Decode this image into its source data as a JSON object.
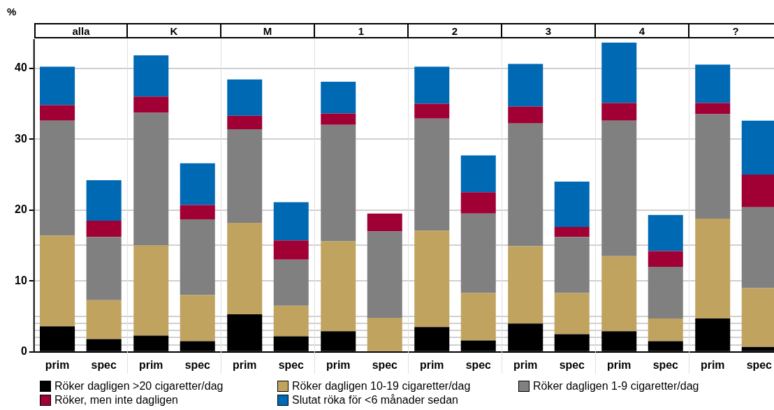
{
  "chart_data": [
    {
      "type": "bar",
      "title": "alla",
      "ylabel": "%",
      "legend": "bottom",
      "stacked": true,
      "grid": "y",
      "categories": [
        "prim",
        "spec"
      ],
      "ylim": [
        0,
        44
      ],
      "yticks": [
        0,
        {
          "value": 1,
          "label": null
        },
        {
          "value": 2,
          "label": null
        },
        {
          "value": 3,
          "label": null
        },
        {
          "value": 4,
          "label": null
        },
        {
          "value": 5,
          "label": null
        },
        10,
        {
          "value": 15,
          "label": null
        },
        20,
        30,
        40
      ],
      "series": [
        {
          "name": "Röker dagligen >20 cigaretter/dag",
          "color": "#000000",
          "values": [
            3.6,
            1.8
          ]
        },
        {
          "name": "Röker dagligen 10-19 cigaretter/dag",
          "color": "#bfa35f",
          "values": [
            12.8,
            5.5
          ]
        },
        {
          "name": "Röker dagligen 1-9 cigaretter/dag",
          "color": "#808080",
          "values": [
            16.2,
            8.9
          ]
        },
        {
          "name": "Röker, men inte dagligen",
          "color": "#a00034",
          "values": [
            2.2,
            2.3
          ]
        },
        {
          "name": "Slutat röka för <6 månader sedan",
          "color": "#0069b4",
          "values": [
            5.4,
            5.7
          ]
        }
      ]
    },
    {
      "type": "bar",
      "title": "K",
      "stacked": true,
      "grid": "y",
      "tick_labels": "x",
      "categories": [
        "prim",
        "spec"
      ],
      "ylim": [
        0,
        44
      ],
      "yticks": [
        0,
        {
          "value": 1,
          "label": null
        },
        {
          "value": 2,
          "label": null
        },
        {
          "value": 3,
          "label": null
        },
        {
          "value": 4,
          "label": null
        },
        {
          "value": 5,
          "label": null
        },
        10,
        {
          "value": 15,
          "label": null
        },
        20,
        30,
        40
      ],
      "series": [
        {
          "color": "#000000",
          "values": [
            2.3,
            1.5
          ]
        },
        {
          "color": "#bfa35f",
          "values": [
            12.7,
            6.5
          ]
        },
        {
          "color": "#808080",
          "values": [
            18.7,
            10.7
          ]
        },
        {
          "color": "#a00034",
          "values": [
            2.3,
            2.0
          ]
        },
        {
          "color": "#0069b4",
          "values": [
            5.8,
            5.9
          ]
        }
      ]
    },
    {
      "type": "bar",
      "title": "M",
      "stacked": true,
      "grid": "y",
      "tick_labels": "x",
      "categories": [
        "prim",
        "spec"
      ],
      "ylim": [
        0,
        44
      ],
      "yticks": [
        0,
        {
          "value": 1,
          "label": null
        },
        {
          "value": 2,
          "label": null
        },
        {
          "value": 3,
          "label": null
        },
        {
          "value": 4,
          "label": null
        },
        {
          "value": 5,
          "label": null
        },
        10,
        {
          "value": 15,
          "label": null
        },
        20,
        30,
        40
      ],
      "series": [
        {
          "color": "#000000",
          "values": [
            5.3,
            2.2
          ]
        },
        {
          "color": "#bfa35f",
          "values": [
            12.9,
            4.3
          ]
        },
        {
          "color": "#808080",
          "values": [
            13.2,
            6.5
          ]
        },
        {
          "color": "#a00034",
          "values": [
            1.9,
            2.7
          ]
        },
        {
          "color": "#0069b4",
          "values": [
            5.1,
            5.4
          ]
        }
      ]
    },
    {
      "type": "bar",
      "title": "1",
      "stacked": true,
      "grid": "y",
      "tick_labels": "x",
      "categories": [
        "prim",
        "spec"
      ],
      "ylim": [
        0,
        44
      ],
      "yticks": [
        0,
        {
          "value": 1,
          "label": null
        },
        {
          "value": 2,
          "label": null
        },
        {
          "value": 3,
          "label": null
        },
        {
          "value": 4,
          "label": null
        },
        {
          "value": 5,
          "label": null
        },
        10,
        {
          "value": 15,
          "label": null
        },
        20,
        30,
        40
      ],
      "series": [
        {
          "color": "#000000",
          "values": [
            2.9,
            null
          ]
        },
        {
          "color": "#bfa35f",
          "values": [
            12.7,
            4.8
          ]
        },
        {
          "color": "#808080",
          "values": [
            16.4,
            12.2
          ]
        },
        {
          "color": "#a00034",
          "values": [
            1.6,
            2.5
          ]
        },
        {
          "color": "#0069b4",
          "values": [
            4.5,
            null
          ]
        }
      ]
    },
    {
      "type": "bar",
      "title": "2",
      "stacked": true,
      "grid": "y",
      "tick_labels": "x",
      "categories": [
        "prim",
        "spec"
      ],
      "ylim": [
        0,
        44
      ],
      "yticks": [
        0,
        {
          "value": 1,
          "label": null
        },
        {
          "value": 2,
          "label": null
        },
        {
          "value": 3,
          "label": null
        },
        {
          "value": 4,
          "label": null
        },
        {
          "value": 5,
          "label": null
        },
        10,
        {
          "value": 15,
          "label": null
        },
        20,
        30,
        40
      ],
      "series": [
        {
          "color": "#000000",
          "values": [
            3.5,
            1.6
          ]
        },
        {
          "color": "#bfa35f",
          "values": [
            13.6,
            6.7
          ]
        },
        {
          "color": "#808080",
          "values": [
            15.8,
            11.2
          ]
        },
        {
          "color": "#a00034",
          "values": [
            2.1,
            3.0
          ]
        },
        {
          "color": "#0069b4",
          "values": [
            5.2,
            5.2
          ]
        }
      ]
    },
    {
      "type": "bar",
      "title": "3",
      "stacked": true,
      "grid": "y",
      "tick_labels": "x",
      "categories": [
        "prim",
        "spec"
      ],
      "ylim": [
        0,
        44
      ],
      "yticks": [
        0,
        {
          "value": 1,
          "label": null
        },
        {
          "value": 2,
          "label": null
        },
        {
          "value": 3,
          "label": null
        },
        {
          "value": 4,
          "label": null
        },
        {
          "value": 5,
          "label": null
        },
        10,
        {
          "value": 15,
          "label": null
        },
        20,
        30,
        40
      ],
      "series": [
        {
          "color": "#000000",
          "values": [
            4.0,
            2.5
          ]
        },
        {
          "color": "#bfa35f",
          "values": [
            10.9,
            5.8
          ]
        },
        {
          "color": "#808080",
          "values": [
            17.3,
            7.9
          ]
        },
        {
          "color": "#a00034",
          "values": [
            2.4,
            1.4
          ]
        },
        {
          "color": "#0069b4",
          "values": [
            6.0,
            6.4
          ]
        }
      ]
    },
    {
      "type": "bar",
      "title": "4",
      "stacked": true,
      "grid": "y",
      "tick_labels": "x",
      "categories": [
        "prim",
        "spec"
      ],
      "ylim": [
        0,
        44
      ],
      "yticks": [
        0,
        {
          "value": 1,
          "label": null
        },
        {
          "value": 2,
          "label": null
        },
        {
          "value": 3,
          "label": null
        },
        {
          "value": 4,
          "label": null
        },
        {
          "value": 5,
          "label": null
        },
        10,
        {
          "value": 15,
          "label": null
        },
        20,
        30,
        40
      ],
      "series": [
        {
          "color": "#000000",
          "values": [
            2.9,
            1.5
          ]
        },
        {
          "color": "#bfa35f",
          "values": [
            10.6,
            3.2
          ]
        },
        {
          "color": "#808080",
          "values": [
            19.1,
            7.3
          ]
        },
        {
          "color": "#a00034",
          "values": [
            2.5,
            2.2
          ]
        },
        {
          "color": "#0069b4",
          "values": [
            8.5,
            5.1
          ]
        }
      ]
    },
    {
      "type": "bar",
      "title": "?",
      "stacked": true,
      "grid": "y",
      "tick_labels": "x",
      "categories": [
        "prim",
        "spec"
      ],
      "ylim": [
        0,
        44
      ],
      "yticks": [
        0,
        {
          "value": 1,
          "label": null
        },
        {
          "value": 2,
          "label": null
        },
        {
          "value": 3,
          "label": null
        },
        {
          "value": 4,
          "label": null
        },
        {
          "value": 5,
          "label": null
        },
        10,
        {
          "value": 15,
          "label": null
        },
        20,
        30,
        40
      ],
      "series": [
        {
          "color": "#000000",
          "values": [
            4.7,
            0.7
          ]
        },
        {
          "color": "#bfa35f",
          "values": [
            14.1,
            8.3
          ]
        },
        {
          "color": "#808080",
          "values": [
            14.7,
            11.4
          ]
        },
        {
          "color": "#a00034",
          "values": [
            1.6,
            4.6
          ]
        },
        {
          "color": "#0069b4",
          "values": [
            5.4,
            7.6
          ]
        }
      ]
    }
  ]
}
